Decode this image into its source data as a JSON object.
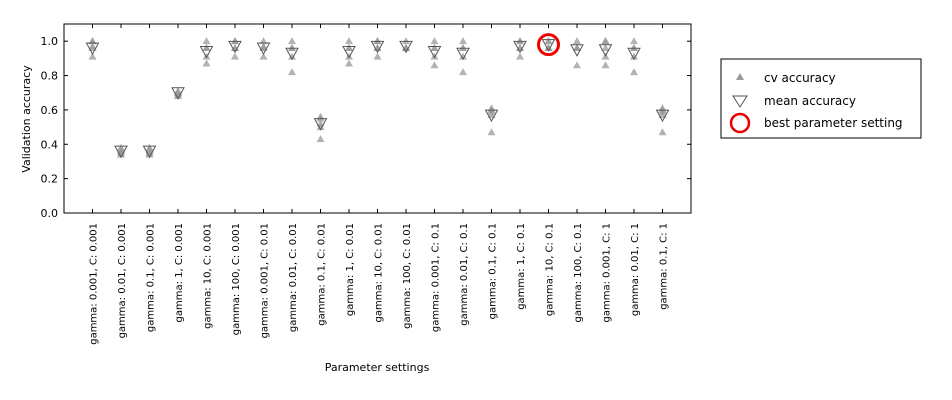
{
  "chart_data": {
    "type": "scatter",
    "title": "",
    "xlabel": "Parameter settings",
    "ylabel": "Validation accuracy",
    "ylim": [
      0.0,
      1.1
    ],
    "yticks": [
      "0.0",
      "0.2",
      "0.4",
      "0.6",
      "0.8",
      "1.0"
    ],
    "grid": false,
    "legend_position": "outside-right",
    "categories": [
      "gamma: 0.001, C: 0.001",
      "gamma: 0.01, C: 0.001",
      "gamma: 0.1, C: 0.001",
      "gamma: 1, C: 0.001",
      "gamma: 10, C: 0.001",
      "gamma: 100, C: 0.001",
      "gamma: 0.001, C: 0.01",
      "gamma: 0.01, C: 0.01",
      "gamma: 0.1, C: 0.01",
      "gamma: 1, C: 0.01",
      "gamma: 10, C: 0.01",
      "gamma: 100, C: 0.01",
      "gamma: 0.001, C: 0.1",
      "gamma: 0.01, C: 0.1",
      "gamma: 0.1, C: 0.1",
      "gamma: 1, C: 0.1",
      "gamma: 10, C: 0.1",
      "gamma: 100, C: 0.1",
      "gamma: 0.001, C: 1",
      "gamma: 0.01, C: 1",
      "gamma: 0.1, C: 1"
    ],
    "series": [
      {
        "name": "cv accuracy",
        "marker": "triangle-up",
        "color": "#999999",
        "values": [
          [
            1.0,
            0.91,
            0.96,
            0.97,
            1.0
          ],
          [
            0.36,
            0.35,
            0.37,
            0.38,
            0.34
          ],
          [
            0.36,
            0.35,
            0.37,
            0.38,
            0.34
          ],
          [
            0.7,
            0.68,
            0.7,
            0.71,
            0.69
          ],
          [
            1.0,
            0.87,
            0.91,
            0.96,
            0.96
          ],
          [
            1.0,
            0.91,
            0.96,
            1.0,
            0.96
          ],
          [
            1.0,
            0.91,
            0.96,
            0.97,
            0.96
          ],
          [
            1.0,
            0.82,
            0.91,
            0.96,
            0.96
          ],
          [
            0.56,
            0.43,
            0.52,
            0.5,
            0.55
          ],
          [
            1.0,
            0.87,
            0.91,
            0.96,
            0.96
          ],
          [
            1.0,
            0.91,
            0.96,
            1.0,
            0.96
          ],
          [
            1.0,
            0.96,
            0.96,
            0.96,
            0.96
          ],
          [
            1.0,
            0.86,
            0.91,
            0.96,
            0.96
          ],
          [
            1.0,
            0.82,
            0.91,
            0.96,
            0.96
          ],
          [
            0.61,
            0.47,
            0.57,
            0.59,
            0.6
          ],
          [
            1.0,
            0.91,
            0.96,
            1.0,
            0.96
          ],
          [
            1.0,
            0.96,
            0.96,
            1.0,
            0.96
          ],
          [
            1.0,
            0.86,
            0.96,
            0.96,
            0.96
          ],
          [
            1.0,
            0.86,
            0.91,
            0.96,
            1.0
          ],
          [
            1.0,
            0.82,
            0.91,
            0.96,
            0.96
          ],
          [
            0.61,
            0.47,
            0.57,
            0.59,
            0.6
          ]
        ]
      },
      {
        "name": "mean accuracy",
        "marker": "triangle-down",
        "color": "#555555",
        "values": [
          0.96,
          0.36,
          0.36,
          0.7,
          0.94,
          0.97,
          0.96,
          0.93,
          0.52,
          0.94,
          0.97,
          0.97,
          0.94,
          0.93,
          0.57,
          0.97,
          0.98,
          0.95,
          0.95,
          0.93,
          0.57
        ]
      },
      {
        "name": "best parameter setting",
        "marker": "circle",
        "color": "#ee0000",
        "best_index": 16,
        "value": 0.98
      }
    ]
  }
}
